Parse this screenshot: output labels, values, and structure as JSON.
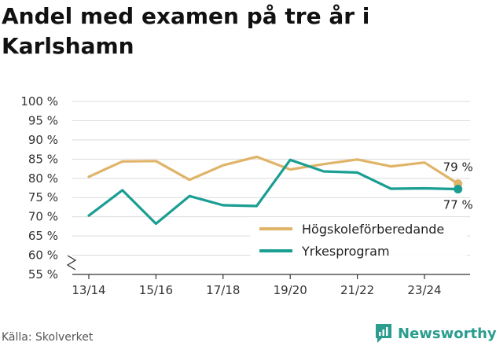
{
  "header": {
    "title": "Andel med examen på tre år i Karlshamn"
  },
  "footer": {
    "source": "Källa: Skolverket",
    "brand": "Newsworthy"
  },
  "colors": {
    "series_1": "#e0b468",
    "series_2": "#1a9e92",
    "grid": "#dcdcdc",
    "brand": "#2a9d8f"
  },
  "chart_data": {
    "type": "line",
    "title": "Andel med examen på tre år i Karlshamn",
    "xlabel": "",
    "ylabel": "",
    "ylim": [
      55,
      100
    ],
    "y_axis_break": true,
    "grid": true,
    "legend_position": "bottom-right",
    "x": [
      "13/14",
      "14/15",
      "15/16",
      "16/17",
      "17/18",
      "18/19",
      "19/20",
      "20/21",
      "21/22",
      "22/23",
      "23/24",
      "24/25"
    ],
    "x_tick_labels": [
      "13/14",
      "15/16",
      "17/18",
      "19/20",
      "21/22",
      "23/24"
    ],
    "y_tick_labels": [
      "55 %",
      "60 %",
      "65 %",
      "70 %",
      "75 %",
      "80 %",
      "85 %",
      "90 %",
      "95 %",
      "100 %"
    ],
    "y_ticks": [
      55,
      60,
      65,
      70,
      75,
      80,
      85,
      90,
      95,
      100
    ],
    "series": [
      {
        "name": "Högskoleförberedande",
        "values": [
          80.4,
          84.4,
          84.5,
          79.6,
          83.4,
          85.6,
          82.3,
          83.7,
          84.9,
          83.1,
          84.1,
          78.6
        ],
        "end_label": "79 %"
      },
      {
        "name": "Yrkesprogram",
        "values": [
          70.3,
          76.9,
          68.2,
          75.4,
          73.0,
          72.8,
          84.8,
          81.8,
          81.5,
          77.3,
          77.4,
          77.2
        ],
        "end_label": "77 %"
      }
    ]
  }
}
